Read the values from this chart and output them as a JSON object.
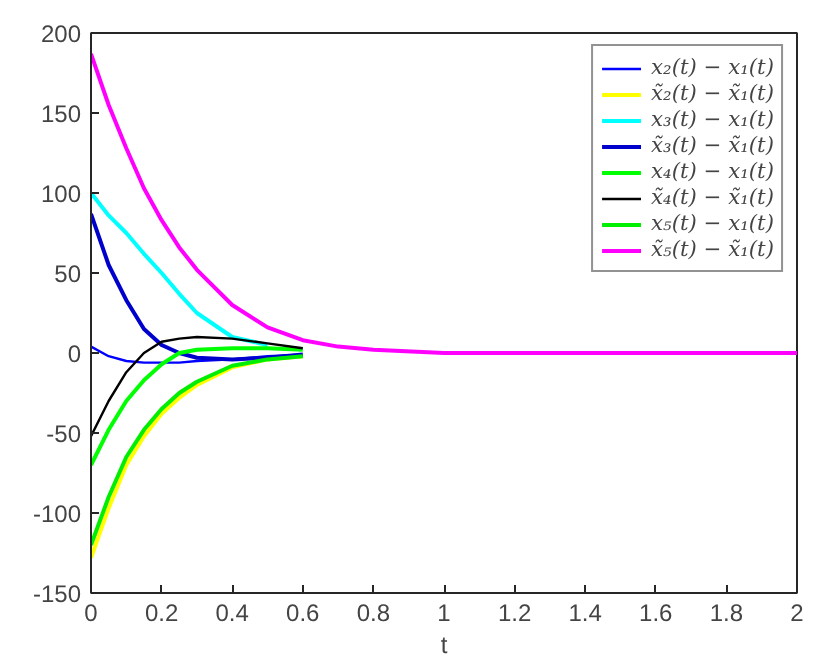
{
  "chart_data": {
    "type": "line",
    "xlabel": "t",
    "x": [
      0,
      0.05,
      0.1,
      0.15,
      0.2,
      0.25,
      0.3,
      0.4,
      0.5,
      0.6,
      0.7,
      0.8,
      1,
      1.5,
      2
    ],
    "series": [
      {
        "name": "x₂(t) − x₁(t)",
        "color": "#0000ff",
        "x": [
          0,
          0.05,
          0.1,
          0.15,
          0.2,
          0.25,
          0.3,
          0.4,
          0.5,
          0.6
        ],
        "values": [
          4,
          -2,
          -5,
          -6,
          -6,
          -6,
          -5,
          -4,
          -2,
          -1
        ]
      },
      {
        "name": "x̃₂(t) − x̃₁(t)",
        "color": "#ffff00",
        "x": [
          0,
          0.05,
          0.1,
          0.15,
          0.2,
          0.25,
          0.3,
          0.4,
          0.5,
          0.6
        ],
        "values": [
          -128,
          -97,
          -70,
          -52,
          -38,
          -28,
          -20,
          -9,
          -4,
          -2
        ]
      },
      {
        "name": "x₃(t) − x₁(t)",
        "color": "#00ffff",
        "x": [
          0,
          0.05,
          0.1,
          0.15,
          0.2,
          0.25,
          0.3,
          0.4,
          0.5
        ],
        "values": [
          100,
          86,
          75,
          62,
          50,
          37,
          25,
          10,
          5
        ]
      },
      {
        "name": "x̃₃(t) − x̃₁(t)",
        "color": "#0000cc",
        "x": [
          0,
          0.05,
          0.1,
          0.15,
          0.2,
          0.25,
          0.3,
          0.4,
          0.5,
          0.6
        ],
        "values": [
          87,
          55,
          33,
          15,
          5,
          0,
          -3,
          -4,
          -3,
          -1
        ]
      },
      {
        "name": "x₄(t) − x₁(t)",
        "color": "#00ff00",
        "x": [
          0,
          0.05,
          0.1,
          0.15,
          0.2,
          0.25,
          0.3,
          0.4,
          0.5,
          0.6
        ],
        "values": [
          -70,
          -48,
          -30,
          -17,
          -7,
          0,
          2,
          3,
          3,
          2
        ]
      },
      {
        "name": "x̃₄(t) − x̃₁(t)",
        "color": "#000000",
        "x": [
          0,
          0.05,
          0.1,
          0.15,
          0.2,
          0.25,
          0.3,
          0.4,
          0.5,
          0.6
        ],
        "values": [
          -52,
          -30,
          -12,
          0,
          7,
          9,
          10,
          9,
          6,
          3
        ]
      },
      {
        "name": "x₅(t) − x₁(t)",
        "color": "#00ee00",
        "x": [
          0,
          0.05,
          0.1,
          0.15,
          0.2,
          0.25,
          0.3,
          0.4,
          0.5,
          0.6
        ],
        "values": [
          -120,
          -90,
          -65,
          -48,
          -35,
          -25,
          -18,
          -8,
          -4,
          -2
        ]
      },
      {
        "name": "x̃₅(t) − x̃₁(t)",
        "color": "#ff00ff",
        "values": [
          187,
          155,
          128,
          103,
          83,
          66,
          52,
          30,
          16,
          8,
          4,
          2,
          0,
          0,
          0
        ]
      }
    ],
    "xlim": [
      0,
      2
    ],
    "xticks": [
      0,
      0.2,
      0.4,
      0.6,
      0.8,
      1,
      1.2,
      1.4,
      1.6,
      1.8,
      2
    ],
    "ylim": [
      -150,
      200
    ],
    "yticks": [
      -150,
      -100,
      -50,
      0,
      50,
      100,
      150,
      200
    ],
    "grid": false,
    "legend": "top right",
    "line_style": "solid"
  }
}
